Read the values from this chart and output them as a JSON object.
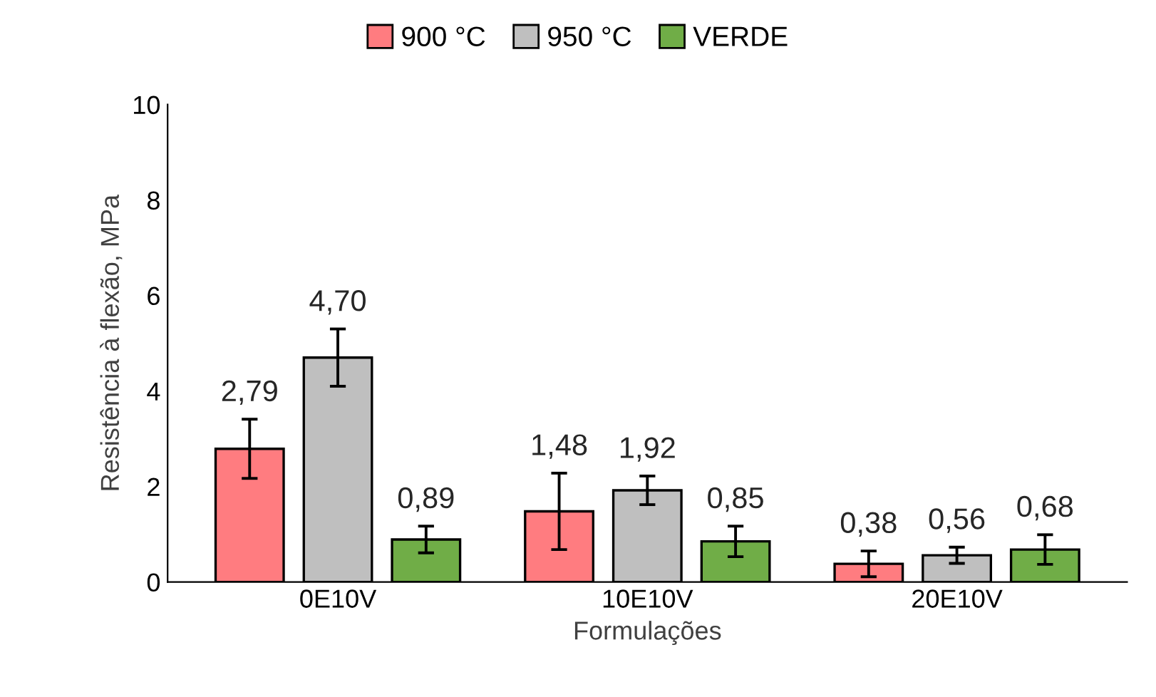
{
  "chart_data": {
    "type": "bar",
    "xlabel": "Formulações",
    "ylabel": "Resistência à flexão, MPa",
    "categories": [
      "0E10V",
      "10E10V",
      "20E10V"
    ],
    "series": [
      {
        "name": "900 °C",
        "color": "#ff7c80",
        "values": [
          2.79,
          1.48,
          0.38
        ],
        "errors": [
          0.62,
          0.8,
          0.27
        ]
      },
      {
        "name": "950 °C",
        "color": "#bfbfbf",
        "values": [
          4.7,
          1.92,
          0.56
        ],
        "errors": [
          0.6,
          0.3,
          0.17
        ]
      },
      {
        "name": "VERDE",
        "color": "#70ad47",
        "values": [
          0.89,
          0.85,
          0.68
        ],
        "errors": [
          0.28,
          0.32,
          0.31
        ]
      }
    ],
    "value_labels": [
      [
        "2,79",
        "1,48",
        "0,38"
      ],
      [
        "4,70",
        "1,92",
        "0,56"
      ],
      [
        "0,89",
        "0,85",
        "0,68"
      ]
    ],
    "ylim": [
      0,
      10
    ],
    "yticks": [
      0,
      2,
      4,
      6,
      8,
      10
    ],
    "grid": false,
    "legend": "top"
  }
}
